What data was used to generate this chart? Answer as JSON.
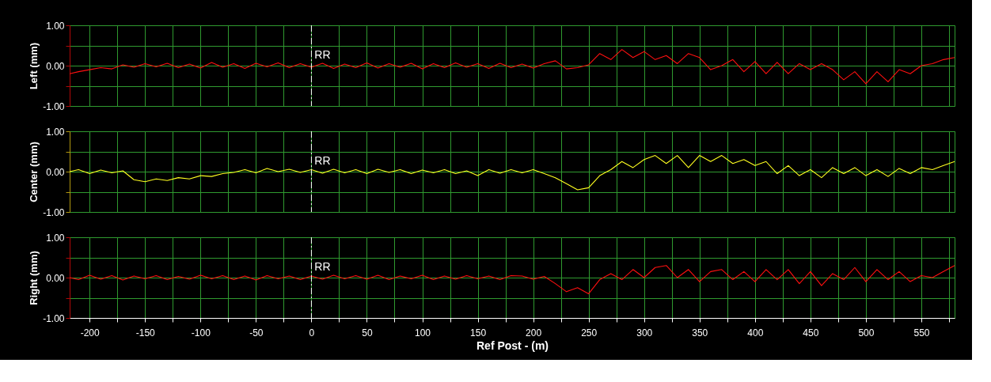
{
  "chart_data": [
    {
      "type": "line",
      "ylabel": "Left (mm)",
      "xlim": [
        -218,
        580
      ],
      "ylim": [
        -1,
        1
      ],
      "yticks": [
        {
          "value": 1,
          "label": "1.00"
        },
        {
          "value": 0.5,
          "label": null
        },
        {
          "value": 0,
          "label": "0.00"
        },
        {
          "value": -0.5,
          "label": null
        },
        {
          "value": -1,
          "label": "-1.00"
        }
      ],
      "xticks": [
        -200,
        {
          "value": -175,
          "label": null
        },
        -150,
        {
          "value": -125,
          "label": null
        },
        -100,
        {
          "value": -75,
          "label": null
        },
        -50,
        {
          "value": -25,
          "label": null
        },
        0,
        {
          "value": 25,
          "label": null
        },
        50,
        {
          "value": 75,
          "label": null
        },
        100,
        {
          "value": 125,
          "label": null
        },
        150,
        {
          "value": 175,
          "label": null
        },
        200,
        {
          "value": 225,
          "label": null
        },
        250,
        {
          "value": 275,
          "label": null
        },
        300,
        {
          "value": 325,
          "label": null
        },
        350,
        {
          "value": 375,
          "label": null
        },
        400,
        {
          "value": 425,
          "label": null
        },
        450,
        {
          "value": 475,
          "label": null
        },
        500,
        {
          "value": 525,
          "label": null
        },
        550,
        {
          "value": 575,
          "label": null
        }
      ],
      "tick_labels": "y",
      "grid": true,
      "ref_lines": [
        {
          "axis": "x",
          "value": 0,
          "label": "RR",
          "color": "#ffffff",
          "line_style": "dashed"
        }
      ],
      "x": [
        -218,
        -210,
        -200,
        -190,
        -180,
        -170,
        -160,
        -150,
        -140,
        -130,
        -120,
        -110,
        -100,
        -90,
        -80,
        -70,
        -60,
        -50,
        -40,
        -30,
        -20,
        -10,
        0,
        10,
        20,
        30,
        40,
        50,
        60,
        70,
        80,
        90,
        100,
        110,
        120,
        130,
        140,
        150,
        160,
        170,
        180,
        190,
        200,
        210,
        220,
        230,
        240,
        250,
        260,
        270,
        280,
        290,
        300,
        310,
        320,
        330,
        340,
        350,
        360,
        370,
        380,
        390,
        400,
        410,
        420,
        430,
        440,
        450,
        460,
        470,
        480,
        490,
        500,
        510,
        520,
        530,
        540,
        550,
        560,
        570,
        580
      ],
      "series": [
        {
          "color": "#ff1010",
          "values": [
            -0.2,
            -0.15,
            -0.1,
            -0.05,
            -0.08,
            0.02,
            -0.04,
            0.05,
            -0.03,
            0.06,
            -0.05,
            0.04,
            -0.06,
            0.08,
            -0.04,
            0.05,
            -0.07,
            0.06,
            -0.03,
            0.07,
            -0.05,
            0.05,
            -0.04,
            0.06,
            -0.07,
            0.04,
            -0.05,
            0.07,
            -0.06,
            0.05,
            -0.04,
            0.06,
            -0.08,
            0.05,
            -0.05,
            0.07,
            -0.04,
            0.05,
            -0.07,
            0.06,
            -0.05,
            0.04,
            -0.06,
            0.05,
            0.12,
            -0.08,
            -0.05,
            0.02,
            0.3,
            0.15,
            0.4,
            0.2,
            0.35,
            0.15,
            0.25,
            0.05,
            0.3,
            0.2,
            -0.1,
            0.0,
            0.15,
            -0.15,
            0.1,
            -0.2,
            0.08,
            -0.2,
            0.05,
            -0.1,
            0.05,
            -0.1,
            -0.35,
            -0.15,
            -0.45,
            -0.15,
            -0.4,
            -0.1,
            -0.2,
            0.0,
            0.05,
            0.15,
            0.2
          ]
        }
      ]
    },
    {
      "type": "line",
      "ylabel": "Center (mm)",
      "xlim": [
        -218,
        580
      ],
      "ylim": [
        -1,
        1
      ],
      "yticks": [
        {
          "value": 1,
          "label": "1.00"
        },
        {
          "value": 0.5,
          "label": null
        },
        {
          "value": 0,
          "label": "0.00"
        },
        {
          "value": -0.5,
          "label": null
        },
        {
          "value": -1,
          "label": "-1.00"
        }
      ],
      "xticks": [
        -200,
        {
          "value": -175,
          "label": null
        },
        -150,
        {
          "value": -125,
          "label": null
        },
        -100,
        {
          "value": -75,
          "label": null
        },
        -50,
        {
          "value": -25,
          "label": null
        },
        0,
        {
          "value": 25,
          "label": null
        },
        50,
        {
          "value": 75,
          "label": null
        },
        100,
        {
          "value": 125,
          "label": null
        },
        150,
        {
          "value": 175,
          "label": null
        },
        200,
        {
          "value": 225,
          "label": null
        },
        250,
        {
          "value": 275,
          "label": null
        },
        300,
        {
          "value": 325,
          "label": null
        },
        350,
        {
          "value": 375,
          "label": null
        },
        400,
        {
          "value": 425,
          "label": null
        },
        450,
        {
          "value": 475,
          "label": null
        },
        500,
        {
          "value": 525,
          "label": null
        },
        550,
        {
          "value": 575,
          "label": null
        }
      ],
      "tick_labels": "y",
      "grid": true,
      "ref_lines": [
        {
          "axis": "x",
          "value": 0,
          "label": "RR",
          "color": "#ffffff",
          "line_style": "dashed"
        }
      ],
      "x": [
        -218,
        -210,
        -200,
        -190,
        -180,
        -170,
        -160,
        -150,
        -140,
        -130,
        -120,
        -110,
        -100,
        -90,
        -80,
        -70,
        -60,
        -50,
        -40,
        -30,
        -20,
        -10,
        0,
        10,
        20,
        30,
        40,
        50,
        60,
        70,
        80,
        90,
        100,
        110,
        120,
        130,
        140,
        150,
        160,
        170,
        180,
        190,
        200,
        210,
        220,
        230,
        240,
        250,
        260,
        270,
        280,
        290,
        300,
        310,
        320,
        330,
        340,
        350,
        360,
        370,
        380,
        390,
        400,
        410,
        420,
        430,
        440,
        450,
        460,
        470,
        480,
        490,
        500,
        510,
        520,
        530,
        540,
        550,
        560,
        570,
        580
      ],
      "series": [
        {
          "color": "#ffff20",
          "values": [
            0.0,
            0.05,
            -0.05,
            0.04,
            -0.03,
            0.02,
            -0.2,
            -0.25,
            -0.18,
            -0.22,
            -0.15,
            -0.18,
            -0.1,
            -0.12,
            -0.05,
            -0.02,
            0.05,
            -0.03,
            0.08,
            0.0,
            0.06,
            -0.02,
            0.05,
            -0.04,
            0.06,
            -0.03,
            0.05,
            -0.05,
            0.06,
            -0.02,
            0.05,
            -0.05,
            0.04,
            -0.03,
            0.05,
            -0.05,
            0.02,
            -0.1,
            0.05,
            -0.04,
            0.05,
            -0.03,
            0.05,
            -0.05,
            -0.15,
            -0.3,
            -0.45,
            -0.4,
            -0.1,
            0.05,
            0.25,
            0.1,
            0.3,
            0.4,
            0.2,
            0.4,
            0.1,
            0.4,
            0.25,
            0.4,
            0.2,
            0.3,
            0.15,
            0.25,
            -0.05,
            0.15,
            -0.1,
            0.05,
            -0.15,
            0.1,
            -0.05,
            0.1,
            -0.1,
            0.05,
            -0.12,
            0.08,
            -0.05,
            0.1,
            0.05,
            0.15,
            0.25
          ]
        }
      ]
    },
    {
      "type": "line",
      "ylabel": "Right (mm)",
      "xlabel": "Ref Post - (m)",
      "xlim": [
        -218,
        580
      ],
      "ylim": [
        -1,
        1
      ],
      "yticks": [
        {
          "value": 1,
          "label": "1.00"
        },
        {
          "value": 0.5,
          "label": null
        },
        {
          "value": 0,
          "label": "0.00"
        },
        {
          "value": -0.5,
          "label": null
        },
        {
          "value": -1,
          "label": "-1.00"
        }
      ],
      "xticks": [
        -200,
        {
          "value": -175,
          "label": null
        },
        -150,
        {
          "value": -125,
          "label": null
        },
        -100,
        {
          "value": -75,
          "label": null
        },
        -50,
        {
          "value": -25,
          "label": null
        },
        0,
        {
          "value": 25,
          "label": null
        },
        50,
        {
          "value": 75,
          "label": null
        },
        100,
        {
          "value": 125,
          "label": null
        },
        150,
        {
          "value": 175,
          "label": null
        },
        200,
        {
          "value": 225,
          "label": null
        },
        250,
        {
          "value": 275,
          "label": null
        },
        300,
        {
          "value": 325,
          "label": null
        },
        350,
        {
          "value": 375,
          "label": null
        },
        400,
        {
          "value": 425,
          "label": null
        },
        450,
        {
          "value": 475,
          "label": null
        },
        500,
        {
          "value": 525,
          "label": null
        },
        550,
        {
          "value": 575,
          "label": null
        }
      ],
      "grid": true,
      "ref_lines": [
        {
          "axis": "x",
          "value": 0,
          "label": "RR",
          "color": "#ffffff",
          "line_style": "dashed"
        }
      ],
      "x": [
        -218,
        -210,
        -200,
        -190,
        -180,
        -170,
        -160,
        -150,
        -140,
        -130,
        -120,
        -110,
        -100,
        -90,
        -80,
        -70,
        -60,
        -50,
        -40,
        -30,
        -20,
        -10,
        0,
        10,
        20,
        30,
        40,
        50,
        60,
        70,
        80,
        90,
        100,
        110,
        120,
        130,
        140,
        150,
        160,
        170,
        180,
        190,
        200,
        210,
        220,
        230,
        240,
        250,
        260,
        270,
        280,
        290,
        300,
        310,
        320,
        330,
        340,
        350,
        360,
        370,
        380,
        390,
        400,
        410,
        420,
        430,
        440,
        450,
        460,
        470,
        480,
        490,
        500,
        510,
        520,
        530,
        540,
        550,
        560,
        570,
        580
      ],
      "series": [
        {
          "color": "#ff1010",
          "values": [
            0.0,
            -0.05,
            0.06,
            -0.04,
            0.05,
            -0.06,
            0.04,
            -0.03,
            0.05,
            -0.05,
            0.03,
            -0.04,
            0.06,
            -0.03,
            0.05,
            -0.05,
            0.04,
            -0.06,
            0.05,
            -0.03,
            0.04,
            -0.05,
            0.04,
            -0.04,
            0.06,
            -0.03,
            0.05,
            -0.04,
            0.06,
            -0.05,
            0.04,
            -0.03,
            0.06,
            -0.05,
            0.04,
            -0.04,
            0.05,
            -0.03,
            0.04,
            -0.05,
            0.05,
            0.04,
            -0.04,
            0.03,
            -0.15,
            -0.35,
            -0.25,
            -0.4,
            -0.05,
            0.1,
            -0.05,
            0.2,
            0.0,
            0.25,
            0.3,
            0.0,
            0.2,
            -0.1,
            0.15,
            0.2,
            -0.05,
            0.15,
            -0.1,
            0.2,
            -0.05,
            0.2,
            -0.15,
            0.15,
            -0.2,
            0.1,
            -0.05,
            0.25,
            -0.1,
            0.2,
            -0.05,
            0.15,
            -0.1,
            0.05,
            0.0,
            0.15,
            0.3
          ]
        }
      ]
    }
  ]
}
